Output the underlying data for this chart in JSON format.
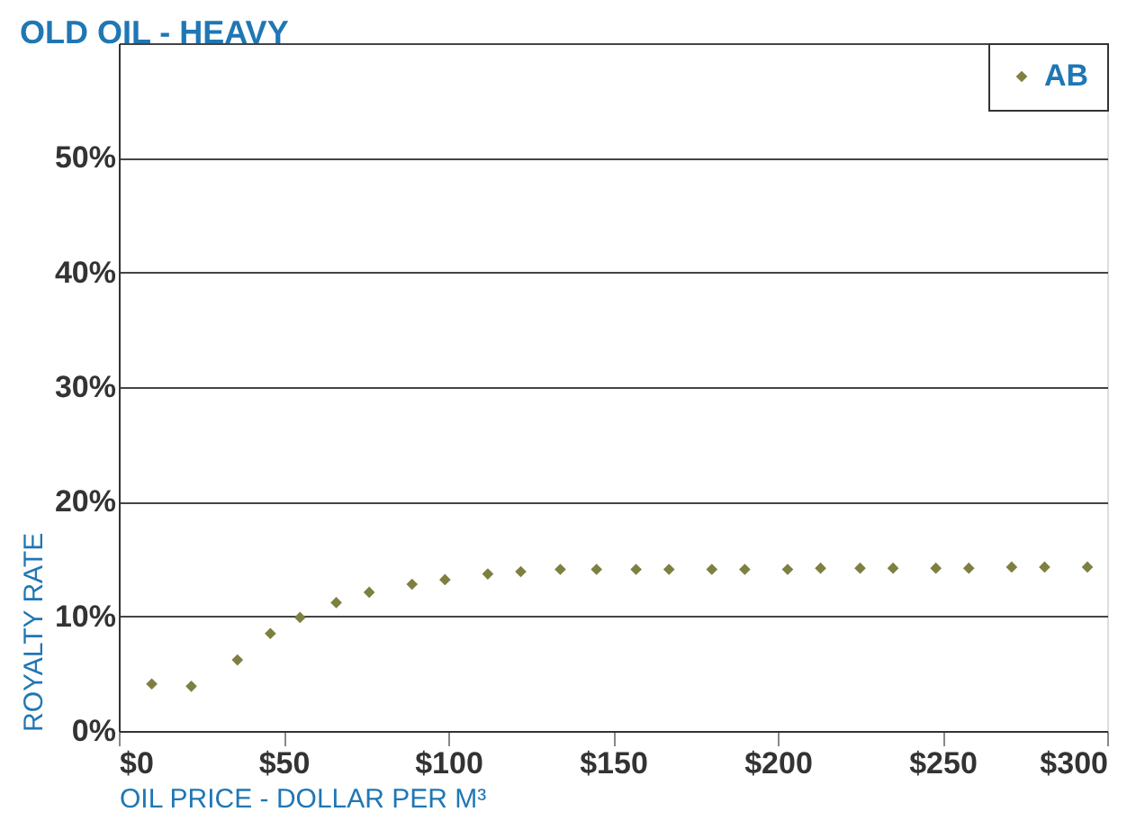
{
  "chart_data": {
    "type": "scatter",
    "title": "OLD OIL - HEAVY",
    "xlabel": "OIL PRICE - DOLLAR PER M³",
    "ylabel": "ROYALTY RATE",
    "x": [
      10,
      22,
      36,
      46,
      55,
      66,
      76,
      89,
      99,
      112,
      122,
      134,
      145,
      157,
      167,
      180,
      190,
      203,
      213,
      225,
      235,
      248,
      258,
      271,
      281,
      294
    ],
    "series": [
      {
        "name": "AB",
        "color": "#7d8040",
        "values": [
          4.1,
          3.9,
          6.2,
          8.5,
          9.9,
          11.2,
          12.1,
          12.8,
          13.2,
          13.7,
          13.9,
          14.1,
          14.1,
          14.1,
          14.1,
          14.1,
          14.1,
          14.1,
          14.2,
          14.2,
          14.2,
          14.2,
          14.2,
          14.3,
          14.3,
          14.3
        ]
      }
    ],
    "xlim": [
      0,
      300
    ],
    "xticks": [
      {
        "value": 0,
        "label": "$0"
      },
      {
        "value": 50,
        "label": "$50"
      },
      {
        "value": 100,
        "label": "$100"
      },
      {
        "value": 150,
        "label": "$150"
      },
      {
        "value": 200,
        "label": "$200"
      },
      {
        "value": 250,
        "label": "$250"
      },
      {
        "value": 300,
        "label": "$300"
      }
    ],
    "ylim": [
      0,
      60
    ],
    "yticks": [
      {
        "value": 0,
        "label": "0%"
      },
      {
        "value": 10,
        "label": "10%"
      },
      {
        "value": 20,
        "label": "20%"
      },
      {
        "value": 30,
        "label": "30%"
      },
      {
        "value": 40,
        "label": "40%"
      },
      {
        "value": 50,
        "label": "50%"
      },
      {
        "value": 60,
        "label": null
      }
    ],
    "grid": "y",
    "legend": "top right",
    "marker": "diamond"
  }
}
